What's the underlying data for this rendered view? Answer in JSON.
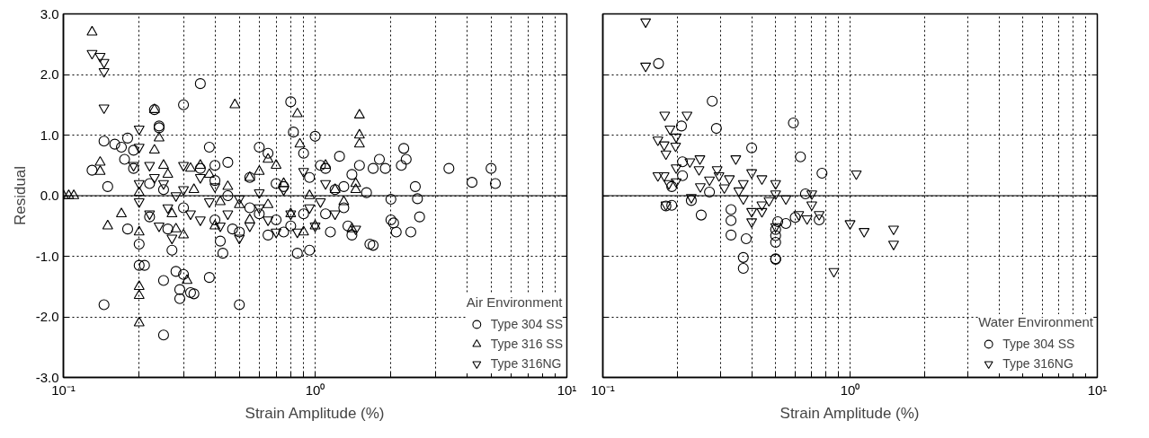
{
  "chart_data": [
    {
      "type": "scatter",
      "xlabel": "Strain Amplitude (%)",
      "ylabel": "Residual",
      "legend_title": "Air Environment",
      "legend": "bottom right",
      "grid": true,
      "log": "x",
      "xlim": [
        0.1,
        10
      ],
      "ylim": [
        -3,
        3
      ],
      "xticks": [
        {
          "value": 0.1,
          "label": "10⁻¹"
        },
        {
          "value": 0.2,
          "label": null
        },
        {
          "value": 0.3,
          "label": null
        },
        {
          "value": 0.4,
          "label": null
        },
        {
          "value": 0.5,
          "label": null
        },
        {
          "value": 0.6,
          "label": null
        },
        {
          "value": 0.7,
          "label": null
        },
        {
          "value": 0.8,
          "label": null
        },
        {
          "value": 0.9,
          "label": null
        },
        {
          "value": 1,
          "label": "10⁰"
        },
        {
          "value": 2,
          "label": null
        },
        {
          "value": 3,
          "label": null
        },
        {
          "value": 4,
          "label": null
        },
        {
          "value": 5,
          "label": null
        },
        {
          "value": 6,
          "label": null
        },
        {
          "value": 7,
          "label": null
        },
        {
          "value": 8,
          "label": null
        },
        {
          "value": 9,
          "label": null
        },
        {
          "value": 10,
          "label": "10¹"
        }
      ],
      "yticks": [
        {
          "value": -3,
          "label": "-3.0"
        },
        {
          "value": -2,
          "label": "-2.0"
        },
        {
          "value": -1,
          "label": "-1.0"
        },
        {
          "value": 0,
          "label": "0.0"
        },
        {
          "value": 1,
          "label": "1.0"
        },
        {
          "value": 2,
          "label": "2.0"
        },
        {
          "value": 3,
          "label": "3.0"
        }
      ],
      "ref_lines": [
        {
          "axis": "y",
          "value": 0,
          "label": null,
          "color": "#000000",
          "line_style": "solid"
        }
      ],
      "series": [
        {
          "name": "Type 304 SS",
          "color": "#000000",
          "marker": "circle",
          "x": [
            0.13,
            0.145,
            0.15,
            0.16,
            0.17,
            0.18,
            0.175,
            0.19,
            0.19,
            0.145,
            0.18,
            0.2,
            0.2,
            0.21,
            0.22,
            0.23,
            0.24,
            0.24,
            0.25,
            0.25,
            0.27,
            0.28,
            0.29,
            0.3,
            0.3,
            0.29,
            0.32,
            0.33,
            0.35,
            0.38,
            0.38,
            0.4,
            0.4,
            0.42,
            0.43,
            0.45,
            0.47,
            0.5,
            0.5,
            0.55,
            0.6,
            0.65,
            0.7,
            0.7,
            0.75,
            0.8,
            0.82,
            0.85,
            0.9,
            0.95,
            0.95,
            1.0,
            1.05,
            1.1,
            1.15,
            1.2,
            1.25,
            1.3,
            1.3,
            1.35,
            1.4,
            1.5,
            1.6,
            1.65,
            1.7,
            1.7,
            1.8,
            1.9,
            2.0,
            2.0,
            2.05,
            2.1,
            2.2,
            2.25,
            2.3,
            2.5,
            2.55,
            2.6,
            2.4,
            3.4,
            4.2,
            5.0,
            5.2,
            0.9,
            0.6,
            0.25,
            0.3,
            0.35,
            0.45,
            0.55,
            0.75,
            1.1,
            1.4,
            0.26,
            0.22,
            0.4,
            0.65,
            0.8
          ],
          "values": [
            0.42,
            0.9,
            0.15,
            0.85,
            0.8,
            0.95,
            0.6,
            0.75,
            0.45,
            -1.8,
            -0.55,
            -0.8,
            -1.15,
            -1.15,
            -0.35,
            1.42,
            1.15,
            1.12,
            -1.4,
            -2.3,
            -0.9,
            -1.25,
            -1.55,
            1.5,
            -1.3,
            -1.7,
            -1.6,
            -1.62,
            1.85,
            0.8,
            -1.35,
            0.5,
            0.25,
            -0.75,
            -0.95,
            0.55,
            -0.55,
            -1.8,
            -0.6,
            0.3,
            0.8,
            0.7,
            0.2,
            -0.4,
            -0.6,
            1.55,
            1.05,
            -0.95,
            0.7,
            0.3,
            -0.9,
            0.98,
            0.5,
            0.45,
            -0.6,
            0.1,
            0.65,
            0.15,
            -0.2,
            -0.5,
            -0.65,
            0.5,
            0.05,
            -0.8,
            -0.82,
            0.45,
            0.6,
            0.45,
            -0.06,
            -0.4,
            -0.45,
            -0.6,
            0.5,
            0.78,
            0.6,
            0.15,
            -0.05,
            -0.35,
            -0.6,
            0.45,
            0.22,
            0.45,
            0.2,
            -0.3,
            -0.3,
            0.1,
            -0.2,
            0.45,
            0.0,
            -0.2,
            0.15,
            -0.3,
            0.35,
            -0.55,
            0.2,
            -0.4,
            -0.65,
            -0.5
          ]
        },
        {
          "name": "Type 316 SS",
          "color": "#000000",
          "marker": "triangle",
          "x": [
            0.1,
            0.105,
            0.11,
            0.13,
            0.14,
            0.14,
            0.15,
            0.17,
            0.2,
            0.2,
            0.2,
            0.2,
            0.2,
            0.23,
            0.23,
            0.24,
            0.25,
            0.26,
            0.27,
            0.28,
            0.3,
            0.31,
            0.32,
            0.35,
            0.38,
            0.4,
            0.42,
            0.48,
            0.5,
            0.55,
            0.6,
            0.65,
            0.7,
            0.75,
            0.8,
            0.85,
            0.87,
            0.95,
            1.0,
            1.1,
            1.2,
            1.3,
            1.5,
            1.5,
            1.5,
            1.45,
            1.45,
            1.4,
            0.9,
            0.65,
            0.45,
            0.33,
            0.55
          ],
          "values": [
            0,
            0,
            0,
            2.7,
            0.4,
            0.55,
            -0.5,
            -0.3,
            -1.5,
            -1.65,
            -2.1,
            -0.6,
            0.05,
            1.42,
            0.75,
            0.95,
            0.5,
            0.35,
            -0.3,
            -0.55,
            -0.65,
            -1.4,
            0.45,
            0.5,
            0.35,
            -0.5,
            -0.1,
            1.5,
            -0.15,
            0.3,
            0.4,
            0.6,
            0.5,
            0.2,
            -0.3,
            1.35,
            0.85,
            0.0,
            -0.5,
            0.5,
            0.1,
            -0.1,
            1.33,
            1.0,
            0.85,
            0.2,
            0.1,
            -0.55,
            -0.6,
            -0.15,
            0.15,
            0.1,
            -0.4
          ]
        },
        {
          "name": "Type 316NG",
          "color": "#000000",
          "marker": "triangle_down",
          "x": [
            0.13,
            0.14,
            0.145,
            0.145,
            0.145,
            0.2,
            0.2,
            0.19,
            0.2,
            0.22,
            0.23,
            0.25,
            0.2,
            0.22,
            0.24,
            0.26,
            0.27,
            0.3,
            0.3,
            0.32,
            0.35,
            0.38,
            0.4,
            0.42,
            0.45,
            0.5,
            0.55,
            0.6,
            0.65,
            0.7,
            0.75,
            0.8,
            0.85,
            0.9,
            0.95,
            1.0,
            1.05,
            1.1,
            1.2,
            1.45,
            0.35,
            0.28,
            0.5,
            0.6
          ],
          "values": [
            2.35,
            2.3,
            2.2,
            2.05,
            1.45,
            1.1,
            0.8,
            0.5,
            0.2,
            0.5,
            0.3,
            0.2,
            -0.1,
            -0.3,
            -0.5,
            -0.2,
            -0.7,
            0.5,
            0.1,
            -0.3,
            -0.4,
            -0.1,
            0.15,
            -0.5,
            -0.3,
            -0.05,
            -0.5,
            -0.2,
            -0.4,
            -0.6,
            0.1,
            -0.3,
            -0.6,
            0.4,
            -0.2,
            -0.5,
            -0.1,
            0.2,
            -0.3,
            -0.55,
            0.3,
            0.0,
            -0.7,
            0.05
          ]
        }
      ]
    },
    {
      "type": "scatter",
      "xlabel": "Strain Amplitude (%)",
      "legend_title": "Water Environment",
      "legend": "bottom right",
      "grid": true,
      "log": "x",
      "tick_labels": "x",
      "xlim": [
        0.1,
        10
      ],
      "ylim": [
        -3,
        3
      ],
      "yticks": [
        -3,
        -2,
        -1,
        0,
        1,
        2,
        3
      ],
      "xticks": [
        {
          "value": 0.1,
          "label": "10⁻¹"
        },
        {
          "value": 0.2,
          "label": null
        },
        {
          "value": 0.3,
          "label": null
        },
        {
          "value": 0.4,
          "label": null
        },
        {
          "value": 0.5,
          "label": null
        },
        {
          "value": 0.6,
          "label": null
        },
        {
          "value": 0.7,
          "label": null
        },
        {
          "value": 0.8,
          "label": null
        },
        {
          "value": 0.9,
          "label": null
        },
        {
          "value": 1,
          "label": "10⁰"
        },
        {
          "value": 2,
          "label": null
        },
        {
          "value": 3,
          "label": null
        },
        {
          "value": 4,
          "label": null
        },
        {
          "value": 5,
          "label": null
        },
        {
          "value": 6,
          "label": null
        },
        {
          "value": 7,
          "label": null
        },
        {
          "value": 8,
          "label": null
        },
        {
          "value": 9,
          "label": null
        },
        {
          "value": 10,
          "label": "10¹"
        }
      ],
      "ref_lines": [
        {
          "axis": "y",
          "value": 0,
          "label": null,
          "color": "#000000",
          "line_style": "solid"
        }
      ],
      "series": [
        {
          "name": "Type 304 SS",
          "color": "#000000",
          "marker": "circle",
          "x": [
            0.168,
            0.277,
            0.288,
            0.208,
            0.4,
            0.59,
            0.63,
            0.77,
            0.21,
            0.21,
            0.19,
            0.19,
            0.228,
            0.25,
            0.27,
            0.33,
            0.33,
            0.33,
            0.38,
            0.37,
            0.37,
            0.5,
            0.5,
            0.5,
            0.5,
            0.5,
            0.51,
            0.55,
            0.6,
            0.66,
            0.75,
            0.18
          ],
          "values": [
            2.18,
            1.56,
            1.11,
            1.15,
            0.79,
            1.2,
            0.64,
            0.37,
            0.56,
            0.33,
            0.15,
            -0.16,
            -0.08,
            -0.32,
            0.06,
            -0.23,
            -0.41,
            -0.65,
            -0.71,
            -1.02,
            -1.2,
            -0.56,
            -0.66,
            -0.77,
            -1.04,
            -1.05,
            -0.43,
            -0.46,
            -0.36,
            0.03,
            -0.4,
            -0.17
          ]
        },
        {
          "name": "Type 316NG",
          "color": "#000000",
          "marker": "triangle_down",
          "x": [
            0.149,
            0.149,
            0.178,
            0.219,
            0.187,
            0.198,
            0.167,
            0.177,
            0.18,
            0.197,
            0.198,
            0.167,
            0.177,
            0.185,
            0.198,
            0.228,
            0.18,
            0.225,
            0.247,
            0.245,
            0.248,
            0.27,
            0.29,
            0.295,
            0.31,
            0.325,
            0.345,
            0.355,
            0.37,
            0.37,
            0.4,
            0.44,
            0.4,
            0.4,
            0.44,
            0.44,
            0.47,
            0.5,
            0.5,
            0.5,
            0.55,
            0.62,
            0.67,
            0.7,
            0.7,
            0.75,
            0.86,
            1.0,
            1.06,
            1.14,
            1.5,
            1.5
          ],
          "values": [
            2.87,
            2.14,
            1.33,
            1.33,
            1.1,
            0.97,
            0.92,
            0.84,
            0.69,
            0.82,
            0.46,
            0.33,
            0.33,
            0.2,
            0.23,
            -0.03,
            -0.15,
            0.56,
            0.61,
            0.43,
            0.15,
            0.26,
            0.43,
            0.33,
            0.13,
            0.28,
            0.61,
            0.08,
            0.2,
            -0.05,
            0.38,
            0.28,
            -0.26,
            -0.43,
            -0.15,
            -0.26,
            -0.08,
            0.2,
            0.03,
            -0.51,
            -0.05,
            -0.31,
            -0.38,
            0.03,
            -0.15,
            -0.31,
            -1.25,
            -0.46,
            0.36,
            -0.59,
            -0.55,
            -0.8
          ]
        }
      ]
    }
  ]
}
